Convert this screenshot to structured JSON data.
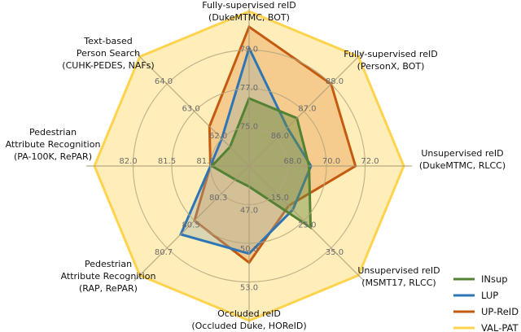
{
  "chart_data": {
    "type": "radar",
    "title": "",
    "axes": [
      {
        "label": [
          "Fully-supervised reID",
          "(DukeMTMC, BOT)"
        ],
        "ticks": [
          "75.0",
          "77.0",
          "79.0"
        ],
        "base": 73,
        "step": 2
      },
      {
        "label": [
          "Fully-supervised reID",
          "(PersonX, BOT)"
        ],
        "ticks": [
          "86.0",
          "87.0",
          "88.0"
        ],
        "base": 85,
        "step": 1
      },
      {
        "label": [
          "Unsupervised reID",
          "(DukeMTMC, RLCC)"
        ],
        "ticks": [
          "68.0",
          "70.0",
          "72.0"
        ],
        "base": 66,
        "step": 2
      },
      {
        "label": [
          "Unsupervised reID",
          "(MSMT17, RLCC)"
        ],
        "ticks": [
          "15.0",
          "25.0",
          "35.0"
        ],
        "base": 5,
        "step": 10
      },
      {
        "label": [
          "Occluded reID",
          "(Occluded Duke, HOReID)"
        ],
        "ticks": [
          "47.0",
          "50.0",
          "53.0"
        ],
        "base": 44,
        "step": 3
      },
      {
        "label": [
          "Pedestrian",
          "Attribute Recognition",
          "(RAP,  RePAR)"
        ],
        "ticks": [
          "80.3",
          "80.5",
          "80.7"
        ],
        "base": 80.1,
        "step": 0.2
      },
      {
        "label": [
          "Pedestrian",
          "Attribute Recognition",
          "(PA-100K, RePAR)"
        ],
        "ticks": [
          "81.0",
          "81.5",
          "82.0"
        ],
        "base": 80.5,
        "step": 0.5
      },
      {
        "label": [
          "Text-based",
          "Person Search",
          "(CUHK-PEDES, NAFs)"
        ],
        "ticks": [
          "62.0",
          "63.0",
          "64.0"
        ],
        "base": 61,
        "step": 1
      }
    ],
    "series": [
      {
        "name": "VAL-PAT",
        "color": "#ffd34d",
        "fill": "rgba(255,217,102,0.45)",
        "values": [
          81.0,
          89.0,
          74.0,
          45.0,
          56.0,
          80.9,
          82.5,
          65.0
        ]
      },
      {
        "name": "UP-ReID",
        "color": "#c55a11",
        "fill": "rgba(226,140,60,0.35)",
        "values": [
          80.2,
          88.0,
          71.5,
          19.5,
          51.5,
          80.5,
          81.0,
          62.45
        ]
      },
      {
        "name": "LUP",
        "color": "#2e75b6",
        "fill": "rgba(150,170,170,0.35)",
        "values": [
          79.1,
          86.4,
          69.2,
          21.0,
          50.8,
          80.6,
          81.0,
          62.0
        ]
      },
      {
        "name": "INsup",
        "color": "#548235",
        "fill": "rgba(110,140,60,0.45)",
        "values": [
          76.5,
          86.75,
          69.1,
          27.5,
          45.6,
          80.2,
          80.98,
          61.7
        ]
      }
    ],
    "legend": {
      "position": "bottom-right",
      "order": [
        "INsup",
        "LUP",
        "UP-ReID",
        "VAL-PAT"
      ]
    },
    "grid": true
  }
}
